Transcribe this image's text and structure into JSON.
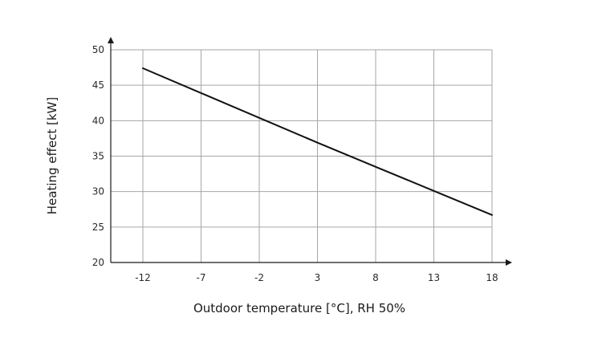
{
  "colors": {
    "grid": "#a6a6a6",
    "axis": "#1a1a1a",
    "series": "#111111",
    "background": "#ffffff"
  },
  "chart_data": {
    "type": "line",
    "xlabel": "Outdoor temperature [°C], RH 50%",
    "ylabel": "Heating effect [kW]",
    "x_ticks": [
      -12,
      -7,
      -2,
      3,
      8,
      13,
      18
    ],
    "y_ticks": [
      20,
      25,
      30,
      35,
      40,
      45,
      50
    ],
    "xlim": [
      -12,
      18
    ],
    "ylim": [
      20,
      50
    ],
    "grid": true,
    "legend": "none",
    "series": [
      {
        "x": [
          -12,
          -7,
          -2,
          3,
          8,
          13,
          18
        ],
        "y": [
          47.4,
          43.9,
          40.4,
          36.9,
          33.5,
          30.1,
          26.7
        ]
      }
    ]
  }
}
